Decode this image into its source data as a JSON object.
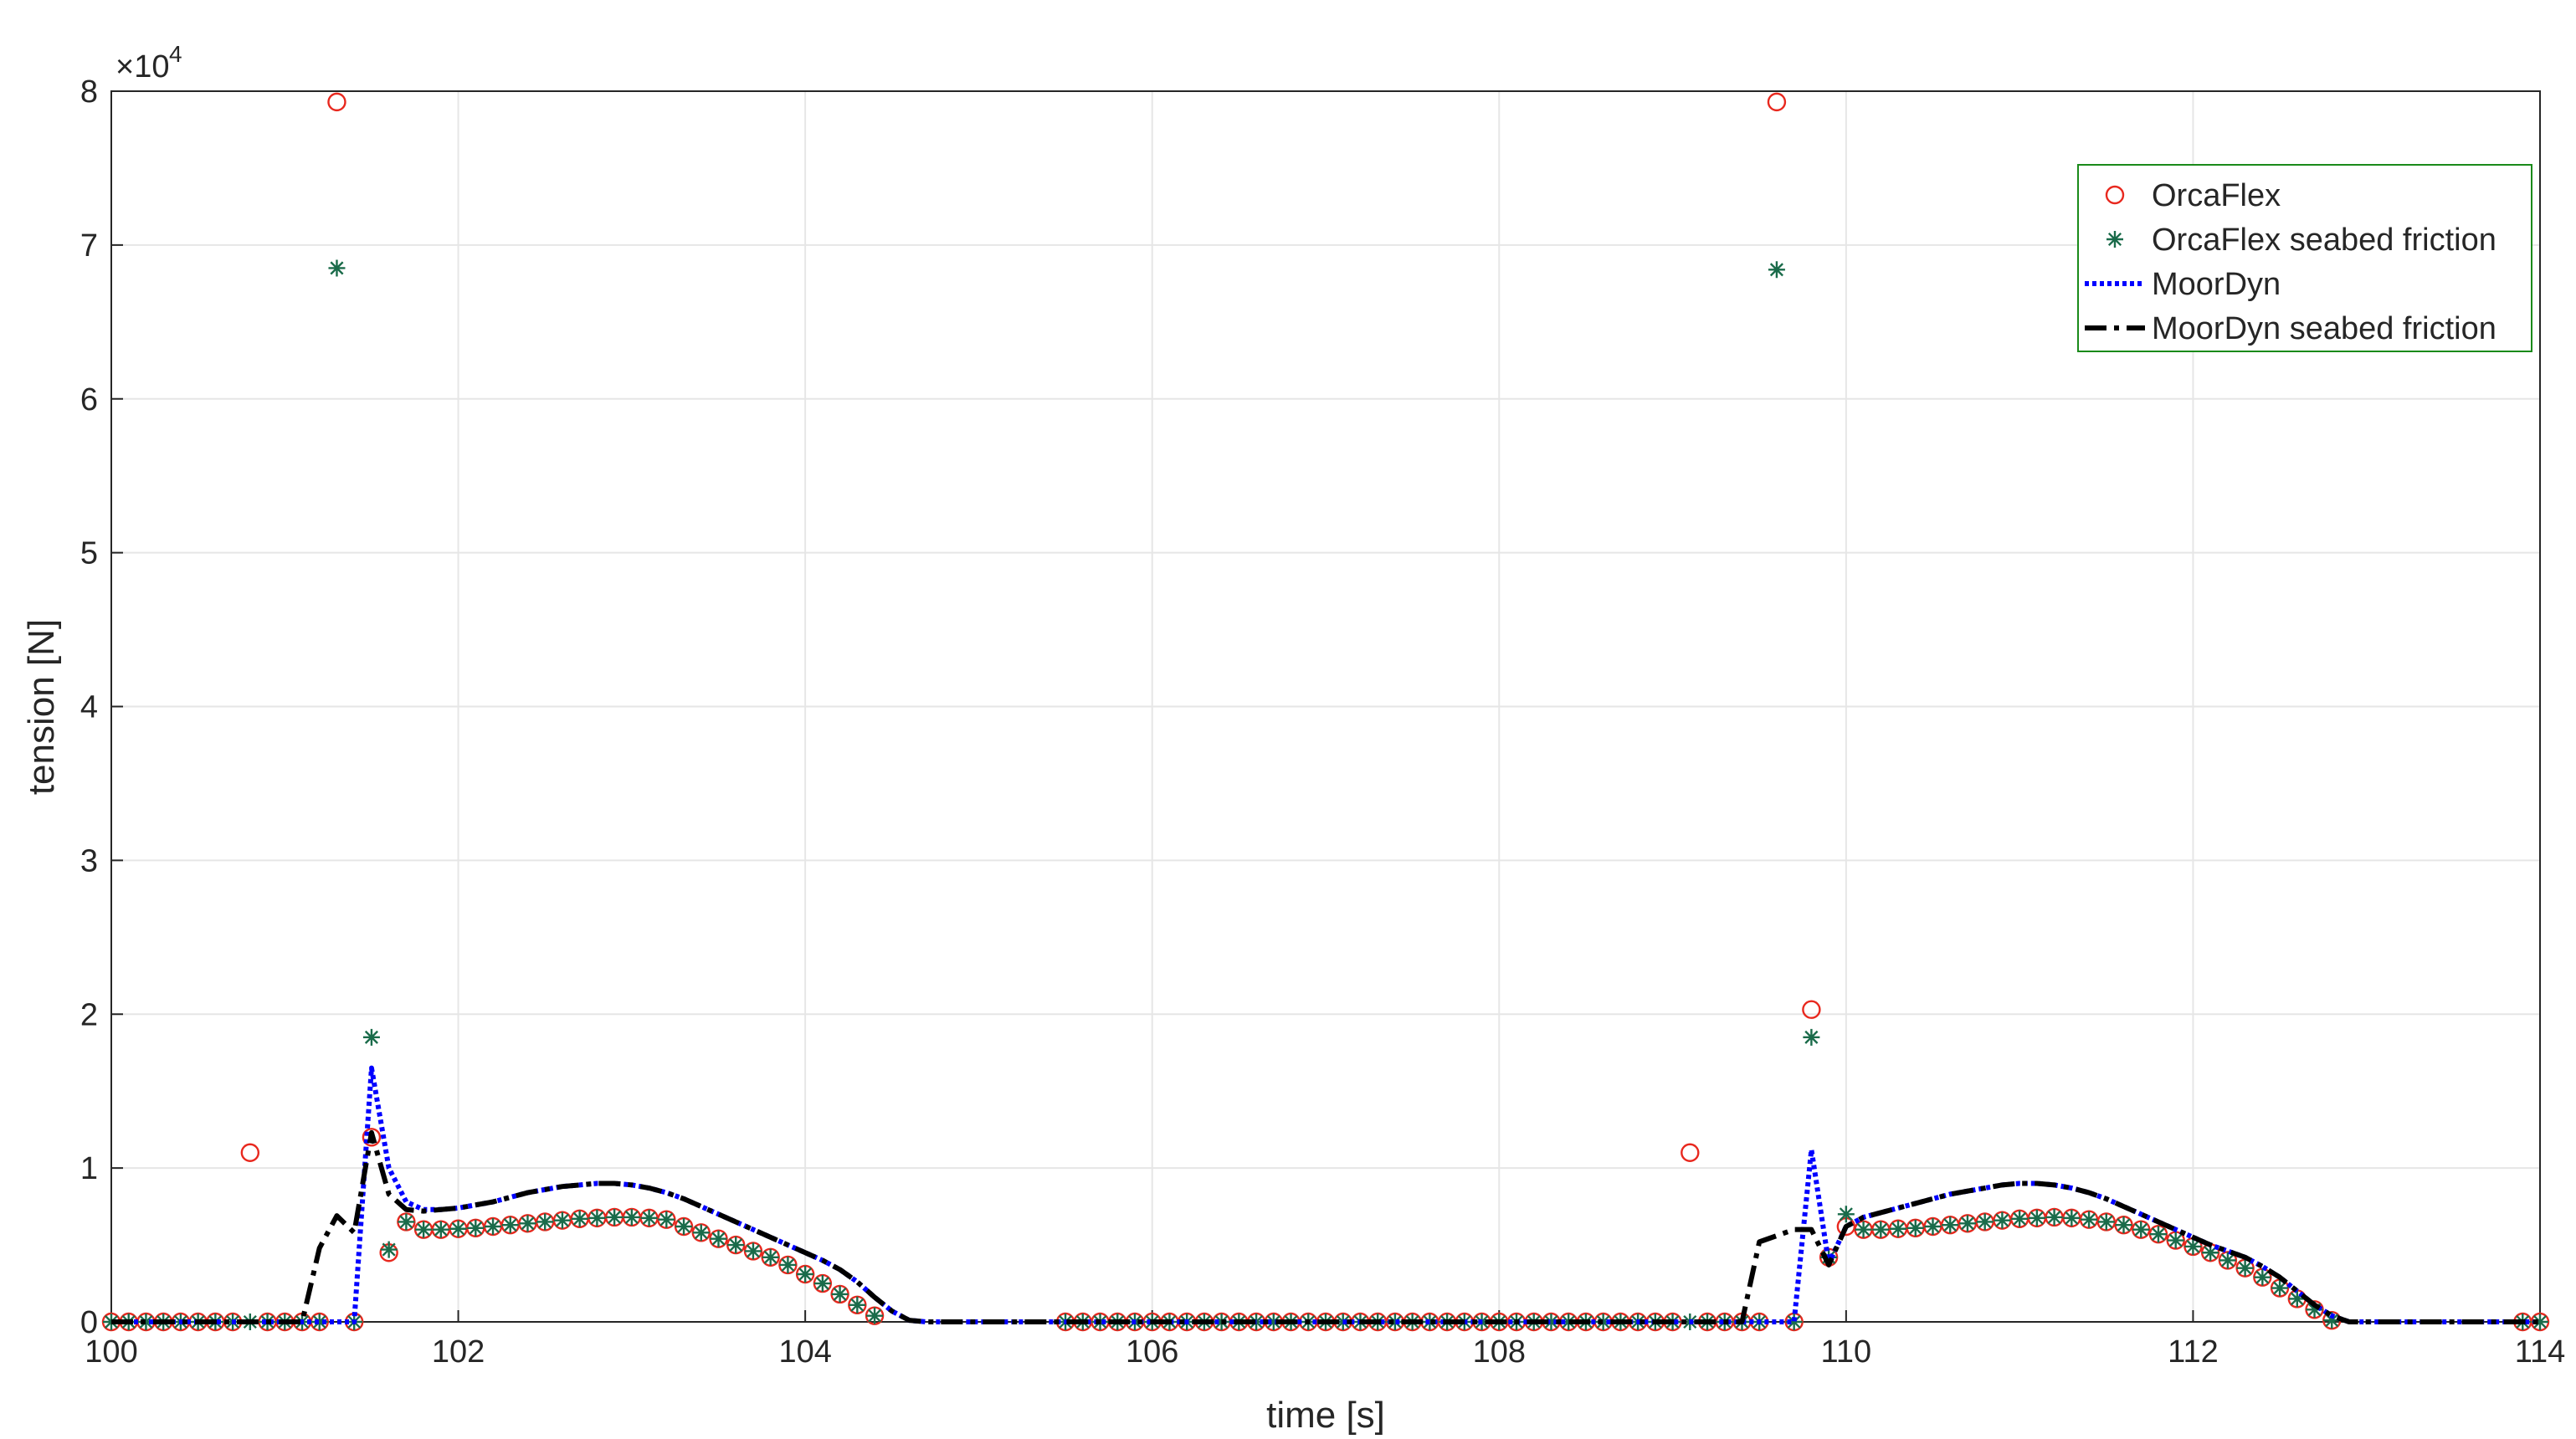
{
  "chart_data": {
    "type": "line",
    "xlabel": "time [s]",
    "ylabel": "tension [N]",
    "y_multiplier_base": "×10",
    "y_multiplier_exponent": "4",
    "xlim": [
      100,
      114
    ],
    "xticks": [
      100,
      102,
      104,
      106,
      108,
      110,
      112,
      114
    ],
    "ylim": [
      0,
      80000
    ],
    "yticks": [
      {
        "value": 0,
        "label": "0"
      },
      {
        "value": 10000,
        "label": "1"
      },
      {
        "value": 20000,
        "label": "2"
      },
      {
        "value": 30000,
        "label": "3"
      },
      {
        "value": 40000,
        "label": "4"
      },
      {
        "value": 50000,
        "label": "5"
      },
      {
        "value": 60000,
        "label": "6"
      },
      {
        "value": 70000,
        "label": "7"
      },
      {
        "value": 80000,
        "label": "8"
      }
    ],
    "grid": true,
    "legend": "upper right",
    "x": [
      100,
      100.1,
      100.2,
      100.3,
      100.4,
      100.5,
      100.6,
      100.7,
      100.8,
      100.9,
      101,
      101.1,
      101.2,
      101.3,
      101.4,
      101.5,
      101.6,
      101.7,
      101.8,
      101.9,
      102,
      102.1,
      102.2,
      102.3,
      102.4,
      102.5,
      102.6,
      102.7,
      102.8,
      102.9,
      103,
      103.1,
      103.2,
      103.3,
      103.4,
      103.5,
      103.6,
      103.7,
      103.8,
      103.9,
      104,
      104.1,
      104.2,
      104.3,
      104.4,
      104.5,
      104.6,
      104.7,
      104.8,
      104.9,
      105,
      105.1,
      105.2,
      105.3,
      105.4,
      105.5,
      105.6,
      105.7,
      105.8,
      105.9,
      106,
      106.1,
      106.2,
      106.3,
      106.4,
      106.5,
      106.6,
      106.7,
      106.8,
      106.9,
      107,
      107.1,
      107.2,
      107.3,
      107.4,
      107.5,
      107.6,
      107.7,
      107.8,
      107.9,
      108,
      108.1,
      108.2,
      108.3,
      108.4,
      108.5,
      108.6,
      108.7,
      108.8,
      108.9,
      109,
      109.1,
      109.2,
      109.3,
      109.4,
      109.5,
      109.6,
      109.7,
      109.8,
      109.9,
      110,
      110.1,
      110.2,
      110.3,
      110.4,
      110.5,
      110.6,
      110.7,
      110.8,
      110.9,
      111,
      111.1,
      111.2,
      111.3,
      111.4,
      111.5,
      111.6,
      111.7,
      111.8,
      111.9,
      112,
      112.1,
      112.2,
      112.3,
      112.4,
      112.5,
      112.6,
      112.7,
      112.8,
      112.9,
      113,
      113.1,
      113.2,
      113.3,
      113.4,
      113.5,
      113.6,
      113.7,
      113.8,
      113.9,
      114
    ],
    "series": [
      {
        "name": "OrcaFlex",
        "mode": "markers",
        "marker": "circle",
        "color": "#e8281e",
        "values": [
          0,
          0,
          0,
          0,
          0,
          0,
          0,
          0,
          11000,
          0,
          0,
          0,
          0,
          79300,
          0,
          12000,
          4500,
          6500,
          6000,
          6000,
          6050,
          6100,
          6200,
          6300,
          6400,
          6500,
          6600,
          6700,
          6750,
          6800,
          6800,
          6750,
          6650,
          6200,
          5800,
          5400,
          5000,
          4600,
          4200,
          3700,
          3100,
          2500,
          1800,
          1100,
          400,
          null,
          null,
          null,
          null,
          null,
          null,
          null,
          null,
          null,
          null,
          0,
          0,
          0,
          0,
          0,
          0,
          0,
          0,
          0,
          0,
          0,
          0,
          0,
          0,
          0,
          0,
          0,
          0,
          0,
          0,
          0,
          0,
          0,
          0,
          0,
          0,
          0,
          0,
          0,
          0,
          0,
          0,
          0,
          0,
          0,
          0,
          11000,
          0,
          0,
          0,
          0,
          79300,
          0,
          20300,
          4200,
          6200,
          6000,
          6000,
          6050,
          6100,
          6200,
          6300,
          6400,
          6500,
          6600,
          6700,
          6750,
          6800,
          6750,
          6650,
          6500,
          6300,
          6000,
          5700,
          5300,
          4900,
          4500,
          4000,
          3500,
          2900,
          2200,
          1500,
          800,
          100,
          null,
          null,
          null,
          null,
          null,
          null,
          null,
          null,
          null,
          null,
          0,
          0
        ]
      },
      {
        "name": "OrcaFlex seabed friction",
        "mode": "markers",
        "marker": "asterisk",
        "color": "#1a6b4a",
        "values": [
          0,
          0,
          0,
          0,
          0,
          0,
          0,
          0,
          0,
          0,
          0,
          0,
          0,
          68500,
          0,
          18500,
          4700,
          6500,
          6000,
          6000,
          6050,
          6100,
          6200,
          6300,
          6400,
          6500,
          6600,
          6700,
          6750,
          6800,
          6800,
          6750,
          6650,
          6200,
          5800,
          5400,
          5000,
          4600,
          4200,
          3700,
          3100,
          2500,
          1800,
          1100,
          400,
          null,
          null,
          null,
          null,
          null,
          null,
          null,
          null,
          null,
          null,
          0,
          0,
          0,
          0,
          0,
          0,
          0,
          0,
          0,
          0,
          0,
          0,
          0,
          0,
          0,
          0,
          0,
          0,
          0,
          0,
          0,
          0,
          0,
          0,
          0,
          0,
          0,
          0,
          0,
          0,
          0,
          0,
          0,
          0,
          0,
          0,
          0,
          0,
          0,
          0,
          0,
          68400,
          0,
          18500,
          4200,
          7000,
          6000,
          6000,
          6050,
          6100,
          6200,
          6300,
          6400,
          6500,
          6600,
          6700,
          6750,
          6800,
          6750,
          6650,
          6500,
          6300,
          6000,
          5700,
          5300,
          4900,
          4500,
          4000,
          3500,
          2900,
          2200,
          1500,
          800,
          100,
          null,
          null,
          null,
          null,
          null,
          null,
          null,
          null,
          null,
          null,
          0,
          0
        ]
      },
      {
        "name": "MoorDyn",
        "mode": "lines",
        "linestyle": "dotted",
        "color": "#0000ff",
        "values": [
          0,
          0,
          0,
          0,
          0,
          0,
          0,
          0,
          0,
          0,
          0,
          0,
          0,
          0,
          0,
          16500,
          10000,
          7800,
          7300,
          7300,
          7400,
          7600,
          7800,
          8100,
          8400,
          8600,
          8800,
          8900,
          9000,
          9000,
          8900,
          8700,
          8400,
          8000,
          7500,
          7000,
          6500,
          6000,
          5500,
          5000,
          4500,
          4000,
          3400,
          2600,
          1600,
          700,
          100,
          0,
          0,
          0,
          0,
          0,
          0,
          0,
          0,
          0,
          0,
          0,
          0,
          0,
          0,
          0,
          0,
          0,
          0,
          0,
          0,
          0,
          0,
          0,
          0,
          0,
          0,
          0,
          0,
          0,
          0,
          0,
          0,
          0,
          0,
          0,
          0,
          0,
          0,
          0,
          0,
          0,
          0,
          0,
          0,
          0,
          0,
          0,
          0,
          0,
          0,
          0,
          11200,
          3800,
          6200,
          6800,
          7100,
          7400,
          7700,
          8000,
          8300,
          8500,
          8700,
          8900,
          9000,
          9000,
          8900,
          8700,
          8400,
          8000,
          7500,
          7000,
          6500,
          6000,
          5500,
          5000,
          4600,
          4200,
          3600,
          2900,
          2000,
          1100,
          400,
          0,
          0,
          0,
          0,
          0,
          0,
          0,
          0,
          0,
          0,
          0,
          0
        ]
      },
      {
        "name": "MoorDyn seabed friction",
        "mode": "lines",
        "linestyle": "dashdot",
        "color": "#000000",
        "values": [
          0,
          0,
          0,
          0,
          0,
          0,
          0,
          0,
          0,
          0,
          0,
          0,
          4800,
          6900,
          5800,
          12300,
          8300,
          7300,
          7200,
          7300,
          7400,
          7600,
          7800,
          8100,
          8400,
          8600,
          8800,
          8900,
          9000,
          9000,
          8900,
          8700,
          8400,
          8000,
          7500,
          7000,
          6500,
          6000,
          5500,
          5000,
          4500,
          4000,
          3400,
          2600,
          1600,
          700,
          100,
          0,
          0,
          0,
          0,
          0,
          0,
          0,
          0,
          0,
          0,
          0,
          0,
          0,
          0,
          0,
          0,
          0,
          0,
          0,
          0,
          0,
          0,
          0,
          0,
          0,
          0,
          0,
          0,
          0,
          0,
          0,
          0,
          0,
          0,
          0,
          0,
          0,
          0,
          0,
          0,
          0,
          0,
          0,
          0,
          0,
          0,
          0,
          0,
          5200,
          5600,
          6000,
          6000,
          3700,
          6200,
          6800,
          7100,
          7400,
          7700,
          8000,
          8300,
          8500,
          8700,
          8900,
          9000,
          9000,
          8900,
          8700,
          8400,
          8000,
          7500,
          7000,
          6500,
          6000,
          5500,
          5000,
          4600,
          4200,
          3600,
          2900,
          2000,
          1100,
          400,
          0,
          0,
          0,
          0,
          0,
          0,
          0,
          0,
          0,
          0,
          0,
          0
        ]
      }
    ]
  }
}
